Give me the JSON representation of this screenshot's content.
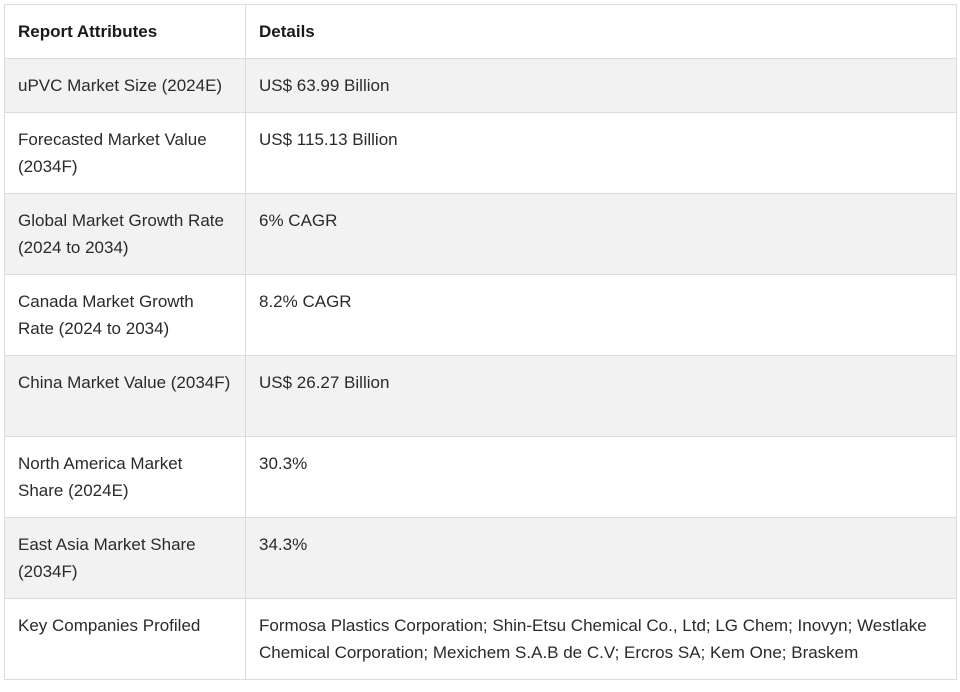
{
  "table": {
    "headers": {
      "attribute": "Report Attributes",
      "details": "Details"
    },
    "rows": [
      {
        "attribute": "uPVC Market Size (2024E)",
        "details": "US$ 63.99 Billion"
      },
      {
        "attribute": "Forecasted Market Value (2034F)",
        "details": "US$ 115.13 Billion"
      },
      {
        "attribute": "Global Market Growth Rate (2024 to 2034)",
        "details": "6% CAGR"
      },
      {
        "attribute": "Canada Market Growth Rate (2024 to 2034)",
        "details": "8.2% CAGR"
      },
      {
        "attribute": "China Market Value (2034F)",
        "details": "US$ 26.27 Billion"
      },
      {
        "attribute": "North America Market Share (2024E)",
        "details": "30.3%"
      },
      {
        "attribute": "East Asia Market Share (2034F)",
        "details": "34.3%"
      },
      {
        "attribute": "Key Companies Profiled",
        "details": "Formosa Plastics Corporation; Shin-Etsu Chemical Co., Ltd; LG Chem; Inovyn; Westlake Chemical Corporation; Mexichem S.A.B de C.V; Ercros SA; Kem One; Braskem"
      }
    ]
  }
}
